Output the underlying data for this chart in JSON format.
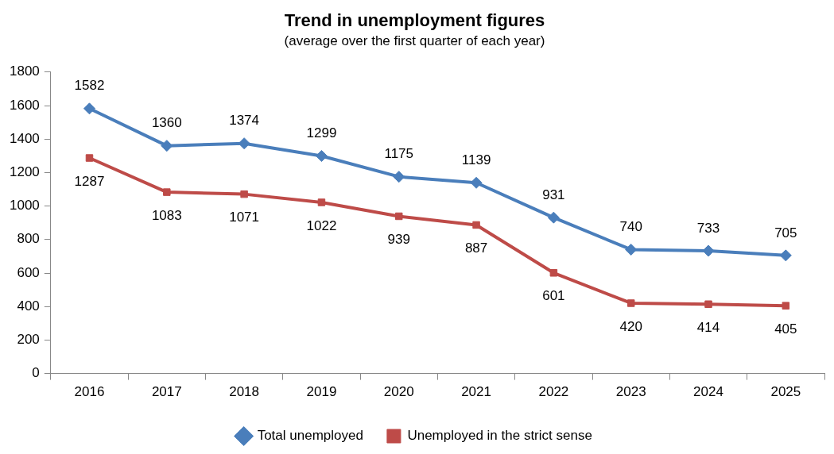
{
  "chart_data": {
    "type": "line",
    "title": "Trend in unemployment figures",
    "subtitle": "(average over the first quarter of each year)",
    "categories": [
      "2016",
      "2017",
      "2018",
      "2019",
      "2020",
      "2021",
      "2022",
      "2023",
      "2024",
      "2025"
    ],
    "series": [
      {
        "name": "Total unemployed",
        "color": "#4a7ebb",
        "marker": "diamond",
        "values": [
          1582,
          1360,
          1374,
          1299,
          1175,
          1139,
          931,
          740,
          733,
          705
        ]
      },
      {
        "name": "Unemployed in the strict sense",
        "color": "#be4b48",
        "marker": "square",
        "values": [
          1287,
          1083,
          1071,
          1022,
          939,
          887,
          601,
          420,
          414,
          405
        ]
      }
    ],
    "ylim": [
      0,
      1800
    ],
    "yticks": [
      0,
      200,
      400,
      600,
      800,
      1000,
      1200,
      1400,
      1600,
      1800
    ],
    "grid": false,
    "legend": "bottom",
    "data_labels": true,
    "line_style": "solid"
  }
}
